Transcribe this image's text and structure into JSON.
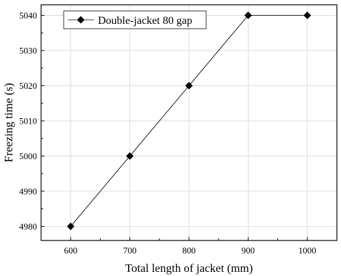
{
  "chart_data": {
    "type": "line",
    "xlabel": "Total length of jacket (mm)",
    "ylabel": "Freezing time (s)",
    "xlim": [
      550,
      1050
    ],
    "ylim": [
      4976,
      5043
    ],
    "xticks": [
      600,
      700,
      800,
      900,
      1000
    ],
    "yticks": [
      4980,
      4990,
      5000,
      5010,
      5020,
      5030,
      5040
    ],
    "grid": true,
    "legend_position": "top-left",
    "series": [
      {
        "name": "Double-jacket 80 gap",
        "marker": "diamond",
        "color": "#000000",
        "x": [
          600,
          700,
          800,
          900,
          1000
        ],
        "y": [
          4980,
          5000,
          5020,
          5040,
          5040
        ]
      }
    ]
  }
}
